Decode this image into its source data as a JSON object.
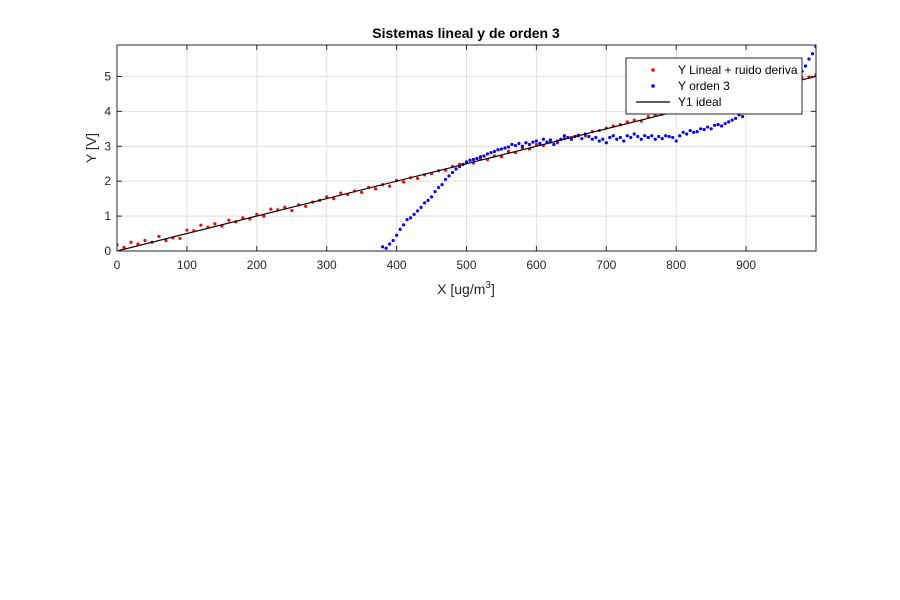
{
  "colors": {
    "series_linear": "#ff0000",
    "series_order3": "#0000ff",
    "series_ideal": "#000000",
    "grid": "#dfdfdf",
    "axes": "#262626"
  },
  "chart_data": {
    "type": "scatter",
    "title": "Sistemas lineal y de orden 3",
    "xlabel": "X [ug/m",
    "xlabel_sup": "3",
    "xlabel_tail": "]",
    "ylabel": "Y [V]",
    "xlim": [
      0,
      1000
    ],
    "ylim": [
      0,
      5.9
    ],
    "xticks": [
      0,
      100,
      200,
      300,
      400,
      500,
      600,
      700,
      800,
      900
    ],
    "yticks": [
      0,
      1,
      2,
      3,
      4,
      5
    ],
    "grid": true,
    "legend_position": "top-right",
    "series": [
      {
        "name": "Y Lineal + ruido deriva",
        "style": "dots",
        "color": "red",
        "x": [
          0,
          10,
          20,
          30,
          40,
          50,
          60,
          70,
          80,
          90,
          100,
          110,
          120,
          130,
          140,
          150,
          160,
          170,
          180,
          190,
          200,
          210,
          220,
          230,
          240,
          250,
          260,
          270,
          280,
          290,
          300,
          310,
          320,
          330,
          340,
          350,
          360,
          370,
          380,
          390,
          400,
          410,
          420,
          430,
          440,
          450,
          460,
          470,
          480,
          490,
          500,
          510,
          520,
          530,
          540,
          550,
          560,
          570,
          580,
          590,
          600,
          610,
          620,
          630,
          640,
          650,
          660,
          670,
          680,
          690,
          700,
          710,
          720,
          730,
          740,
          750,
          760,
          770,
          780,
          790,
          800,
          810,
          820,
          830,
          840,
          850,
          860,
          870,
          880,
          890,
          900,
          910,
          920,
          930,
          940,
          950,
          960,
          970,
          980,
          990,
          1000
        ],
        "y": [
          0.18,
          0.1,
          0.25,
          0.2,
          0.3,
          0.25,
          0.42,
          0.3,
          0.38,
          0.36,
          0.6,
          0.58,
          0.74,
          0.68,
          0.78,
          0.72,
          0.88,
          0.84,
          0.95,
          0.92,
          1.05,
          1.0,
          1.2,
          1.18,
          1.25,
          1.16,
          1.32,
          1.28,
          1.4,
          1.45,
          1.55,
          1.5,
          1.66,
          1.62,
          1.72,
          1.68,
          1.82,
          1.78,
          1.9,
          1.86,
          2.02,
          1.98,
          2.1,
          2.08,
          2.18,
          2.22,
          2.3,
          2.32,
          2.42,
          2.48,
          2.55,
          2.52,
          2.65,
          2.62,
          2.72,
          2.7,
          2.85,
          2.82,
          2.95,
          2.92,
          3.05,
          3.02,
          3.12,
          3.1,
          3.22,
          3.25,
          3.32,
          3.3,
          3.42,
          3.45,
          3.52,
          3.58,
          3.62,
          3.7,
          3.75,
          3.72,
          3.85,
          3.88,
          3.92,
          4.0,
          3.95,
          4.05,
          4.1,
          4.15,
          4.2,
          4.25,
          4.3,
          4.35,
          4.4,
          4.45,
          4.5,
          4.55,
          4.6,
          4.65,
          4.7,
          4.78,
          4.82,
          4.88,
          4.95,
          4.98,
          5.05
        ]
      },
      {
        "name": "Y orden 3",
        "style": "dots",
        "color": "blue",
        "x": [
          380,
          385,
          390,
          395,
          400,
          405,
          410,
          415,
          420,
          425,
          430,
          435,
          440,
          445,
          450,
          455,
          460,
          465,
          470,
          475,
          480,
          485,
          490,
          495,
          500,
          505,
          510,
          515,
          520,
          525,
          530,
          535,
          540,
          545,
          550,
          555,
          560,
          565,
          570,
          575,
          580,
          585,
          590,
          595,
          600,
          605,
          610,
          615,
          620,
          625,
          630,
          635,
          640,
          645,
          650,
          655,
          660,
          665,
          670,
          675,
          680,
          685,
          690,
          695,
          700,
          705,
          710,
          715,
          720,
          725,
          730,
          735,
          740,
          745,
          750,
          755,
          760,
          765,
          770,
          775,
          780,
          785,
          790,
          795,
          800,
          805,
          810,
          815,
          820,
          825,
          830,
          835,
          840,
          845,
          850,
          855,
          860,
          865,
          870,
          875,
          880,
          885,
          890,
          895,
          900,
          905,
          910,
          915,
          920,
          925,
          930,
          935,
          940,
          945,
          950,
          955,
          960,
          965,
          970,
          975,
          980,
          985,
          990,
          995,
          1000
        ],
        "y": [
          0.12,
          0.08,
          0.2,
          0.3,
          0.45,
          0.62,
          0.75,
          0.9,
          0.95,
          1.05,
          1.15,
          1.25,
          1.38,
          1.45,
          1.55,
          1.7,
          1.82,
          1.9,
          2.05,
          2.15,
          2.25,
          2.35,
          2.42,
          2.48,
          2.55,
          2.6,
          2.62,
          2.65,
          2.7,
          2.72,
          2.78,
          2.82,
          2.85,
          2.9,
          2.92,
          2.95,
          2.98,
          3.05,
          3.02,
          3.08,
          3.0,
          3.1,
          3.05,
          3.12,
          3.15,
          3.08,
          3.2,
          3.12,
          3.18,
          3.05,
          3.15,
          3.2,
          3.3,
          3.25,
          3.2,
          3.28,
          3.3,
          3.22,
          3.35,
          3.28,
          3.2,
          3.25,
          3.15,
          3.2,
          3.1,
          3.25,
          3.3,
          3.2,
          3.25,
          3.15,
          3.3,
          3.25,
          3.35,
          3.28,
          3.2,
          3.3,
          3.25,
          3.3,
          3.2,
          3.28,
          3.22,
          3.3,
          3.28,
          3.25,
          3.15,
          3.3,
          3.4,
          3.35,
          3.45,
          3.4,
          3.42,
          3.5,
          3.48,
          3.55,
          3.5,
          3.6,
          3.62,
          3.58,
          3.65,
          3.7,
          3.75,
          3.8,
          3.9,
          3.85,
          3.95,
          4.0,
          4.05,
          4.1,
          4.2,
          4.25,
          4.3,
          4.35,
          4.45,
          4.5,
          4.6,
          4.65,
          4.75,
          4.85,
          4.95,
          5.05,
          5.15,
          5.3,
          5.5,
          5.65,
          5.85
        ]
      },
      {
        "name": "Y1 ideal",
        "style": "line",
        "color": "black",
        "x": [
          0,
          1000
        ],
        "y": [
          0,
          5.0
        ]
      }
    ]
  }
}
